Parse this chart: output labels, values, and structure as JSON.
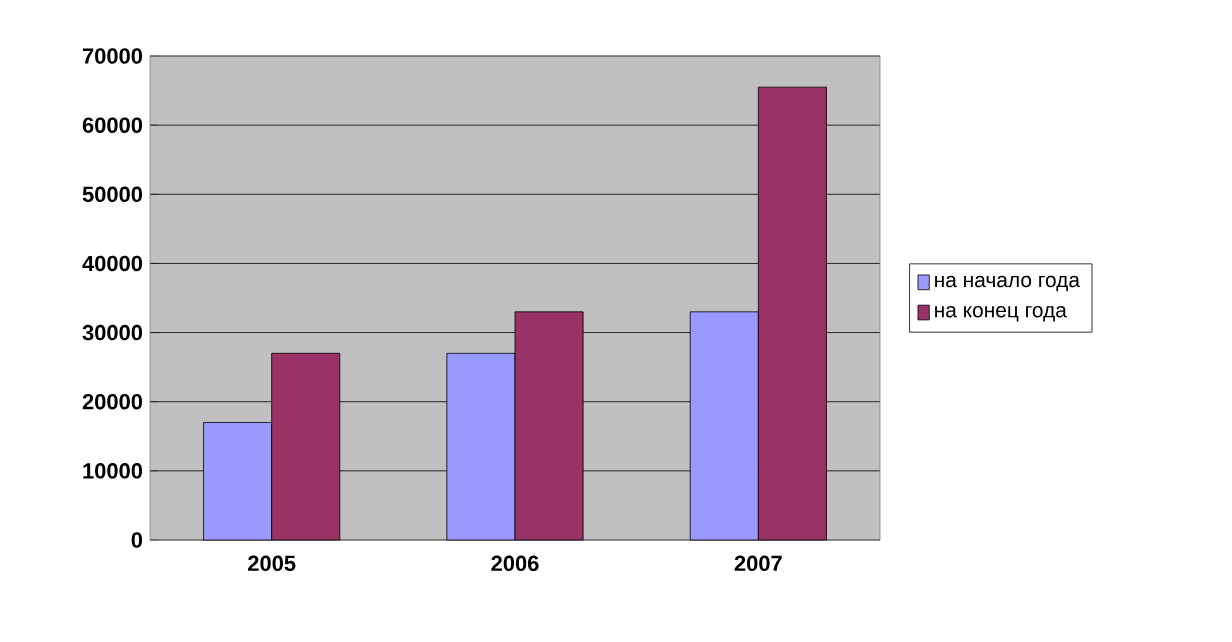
{
  "chart_data": {
    "type": "bar",
    "categories": [
      "2005",
      "2006",
      "2007"
    ],
    "series": [
      {
        "name": "на начало года",
        "color": "#9999ff",
        "values": [
          17000,
          27000,
          33000
        ]
      },
      {
        "name": "на конец года",
        "color": "#993366",
        "values": [
          27000,
          33000,
          65500
        ]
      }
    ],
    "ylim": [
      0,
      70000
    ],
    "yticks": [
      0,
      10000,
      20000,
      30000,
      40000,
      50000,
      60000,
      70000
    ],
    "grid": "y",
    "legend": "right"
  }
}
